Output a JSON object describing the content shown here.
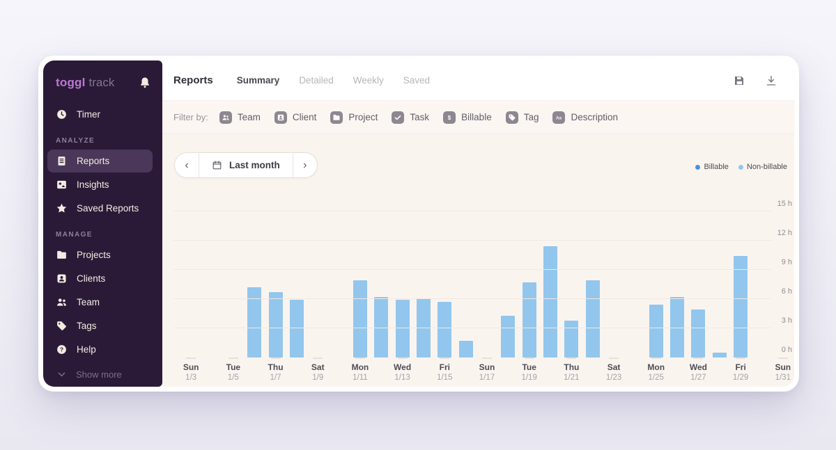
{
  "colors": {
    "sidebar_bg": "#2b1a37",
    "sidebar_selected_bg": "#4a3759",
    "logo_primary": "#bb79d2",
    "logo_secondary": "#857394",
    "filter_bar_bg": "#fbf6f2",
    "chart_bg": "#faf4ef",
    "bar_color": "#92c6ed",
    "billable_color": "#4a90d9",
    "nonbillable_color": "#92c6ed"
  },
  "sidebar": {
    "logo": {
      "primary": "toggl",
      "secondary": "track"
    },
    "bell_icon": "bell-icon",
    "sections": [
      {
        "label": "",
        "items": [
          {
            "label": "Timer",
            "icon": "clock-icon",
            "selected": false
          }
        ]
      },
      {
        "label": "ANALYZE",
        "items": [
          {
            "label": "Reports",
            "icon": "report-icon",
            "selected": true
          },
          {
            "label": "Insights",
            "icon": "insights-icon",
            "selected": false
          },
          {
            "label": "Saved Reports",
            "icon": "star-icon",
            "selected": false
          }
        ]
      },
      {
        "label": "MANAGE",
        "items": [
          {
            "label": "Projects",
            "icon": "folder-icon",
            "selected": false
          },
          {
            "label": "Clients",
            "icon": "client-icon",
            "selected": false
          },
          {
            "label": "Team",
            "icon": "team-icon",
            "selected": false
          },
          {
            "label": "Tags",
            "icon": "tag-icon",
            "selected": false
          },
          {
            "label": "Help",
            "icon": "help-icon",
            "selected": false
          }
        ]
      }
    ],
    "show_more": {
      "label": "Show more",
      "icon": "chevron-down-icon"
    }
  },
  "header": {
    "title": "Reports",
    "tabs": [
      {
        "label": "Summary",
        "active": true
      },
      {
        "label": "Detailed",
        "active": false
      },
      {
        "label": "Weekly",
        "active": false
      },
      {
        "label": "Saved",
        "active": false
      }
    ],
    "actions": [
      {
        "name": "save",
        "icon": "save-icon"
      },
      {
        "name": "download",
        "icon": "download-icon"
      }
    ]
  },
  "filter_bar": {
    "label": "Filter by:",
    "filters": [
      {
        "label": "Team",
        "icon": "team-icon"
      },
      {
        "label": "Client",
        "icon": "client-icon"
      },
      {
        "label": "Project",
        "icon": "folder-icon"
      },
      {
        "label": "Task",
        "icon": "check-icon"
      },
      {
        "label": "Billable",
        "icon": "dollar-icon"
      },
      {
        "label": "Tag",
        "icon": "tag-icon"
      },
      {
        "label": "Description",
        "icon": "text-icon"
      }
    ]
  },
  "date_picker": {
    "prev": "‹",
    "label": "Last month",
    "next": "›",
    "icon": "calendar-icon"
  },
  "legend": [
    {
      "label": "Billable",
      "color": "#4a90d9"
    },
    {
      "label": "Non-billable",
      "color": "#92c6ed"
    }
  ],
  "chart_data": {
    "type": "bar",
    "title": "Tracked hours per day, last month",
    "xlabel": "day",
    "ylabel": "hours",
    "ylim": [
      0,
      15
    ],
    "grid": true,
    "legend_position": "top-right",
    "y_ticks": [
      "0 h",
      "3 h",
      "6 h",
      "9 h",
      "12 h",
      "15 h"
    ],
    "series": [
      {
        "name": "Non-billable",
        "color": "#92c6ed"
      }
    ],
    "days": [
      {
        "day": "Sun",
        "date": "1/3",
        "hours": 0,
        "show_label": true
      },
      {
        "day": "Mon",
        "date": "1/4",
        "hours": 0,
        "show_label": false
      },
      {
        "day": "Tue",
        "date": "1/5",
        "hours": 0,
        "show_label": true
      },
      {
        "day": "Wed",
        "date": "1/6",
        "hours": 7.2,
        "show_label": false
      },
      {
        "day": "Thu",
        "date": "1/7",
        "hours": 6.7,
        "show_label": true
      },
      {
        "day": "Fri",
        "date": "1/8",
        "hours": 5.9,
        "show_label": false
      },
      {
        "day": "Sat",
        "date": "1/9",
        "hours": 0,
        "show_label": true
      },
      {
        "day": "Sun",
        "date": "1/10",
        "hours": 0,
        "show_label": false
      },
      {
        "day": "Mon",
        "date": "1/11",
        "hours": 7.9,
        "show_label": true
      },
      {
        "day": "Tue",
        "date": "1/12",
        "hours": 6.2,
        "show_label": false
      },
      {
        "day": "Wed",
        "date": "1/13",
        "hours": 5.9,
        "show_label": true
      },
      {
        "day": "Thu",
        "date": "1/14",
        "hours": 6.1,
        "show_label": false
      },
      {
        "day": "Fri",
        "date": "1/15",
        "hours": 5.7,
        "show_label": true
      },
      {
        "day": "Sat",
        "date": "1/16",
        "hours": 1.7,
        "show_label": false
      },
      {
        "day": "Sun",
        "date": "1/17",
        "hours": 0,
        "show_label": true
      },
      {
        "day": "Mon",
        "date": "1/18",
        "hours": 4.3,
        "show_label": false
      },
      {
        "day": "Tue",
        "date": "1/19",
        "hours": 7.7,
        "show_label": true
      },
      {
        "day": "Wed",
        "date": "1/20",
        "hours": 11.4,
        "show_label": false
      },
      {
        "day": "Thu",
        "date": "1/21",
        "hours": 3.8,
        "show_label": true
      },
      {
        "day": "Fri",
        "date": "1/22",
        "hours": 7.9,
        "show_label": false
      },
      {
        "day": "Sat",
        "date": "1/23",
        "hours": 0,
        "show_label": true
      },
      {
        "day": "Sun",
        "date": "1/24",
        "hours": 0,
        "show_label": false
      },
      {
        "day": "Mon",
        "date": "1/25",
        "hours": 5.4,
        "show_label": true
      },
      {
        "day": "Tue",
        "date": "1/26",
        "hours": 6.2,
        "show_label": false
      },
      {
        "day": "Wed",
        "date": "1/27",
        "hours": 4.9,
        "show_label": true
      },
      {
        "day": "Thu",
        "date": "1/28",
        "hours": 0.5,
        "show_label": false
      },
      {
        "day": "Fri",
        "date": "1/29",
        "hours": 10.4,
        "show_label": true
      },
      {
        "day": "Sat",
        "date": "1/30",
        "hours": 0,
        "show_label": false
      },
      {
        "day": "Sun",
        "date": "1/31",
        "hours": 0,
        "show_label": true
      }
    ]
  }
}
